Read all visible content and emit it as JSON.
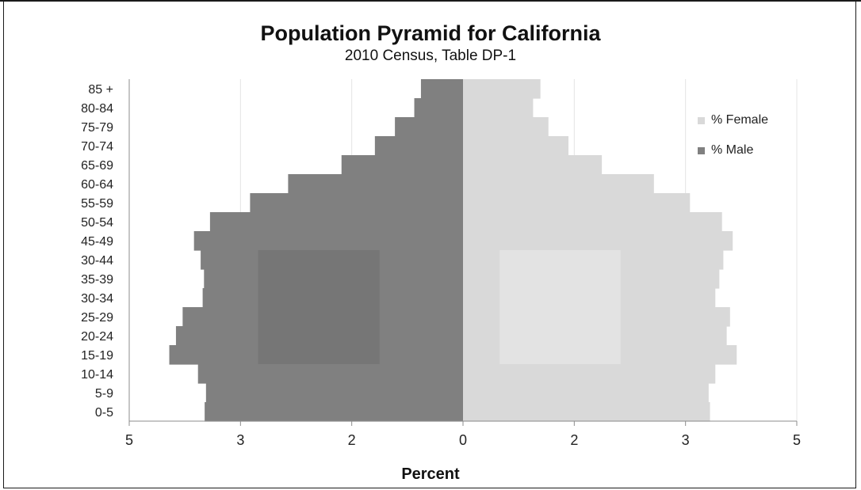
{
  "chart_data": {
    "type": "bar",
    "title": "Population Pyramid for California",
    "subtitle": "2010 Census, Table DP-1",
    "xlabel": "Percent",
    "ylabel": "",
    "categories": [
      "85 +",
      "80-84",
      "75-79",
      "70-74",
      "65-69",
      "60-64",
      "55-59",
      "50-54",
      "45-49",
      "30-44",
      "35-39",
      "30-34",
      "25-29",
      "20-24",
      "15-19",
      "10-14",
      "5-9",
      "0-5"
    ],
    "series": [
      {
        "name": "% Female",
        "color": "#d9d9d9",
        "values": [
          1.16,
          1.05,
          1.28,
          1.58,
          2.08,
          2.86,
          3.4,
          3.88,
          4.04,
          3.9,
          3.84,
          3.78,
          4.0,
          3.95,
          4.1,
          3.78,
          3.68,
          3.7
        ]
      },
      {
        "name": "% Male",
        "color": "#808080",
        "values": [
          0.63,
          0.73,
          1.02,
          1.32,
          1.82,
          2.62,
          3.19,
          3.79,
          4.03,
          3.93,
          3.88,
          3.9,
          4.2,
          4.3,
          4.4,
          3.97,
          3.85,
          3.87
        ]
      }
    ],
    "xlim": [
      -5,
      5
    ],
    "xticks": [
      -5,
      -3.3333,
      -1.6667,
      0,
      1.6667,
      3.3333,
      5
    ],
    "xtick_labels": [
      "5",
      "3",
      "2",
      "0",
      "2",
      "3",
      "5"
    ],
    "grid": "vertical",
    "legend": "right",
    "highlight_boxes": [
      {
        "series": "% Male",
        "x_range": [
          -3.07,
          -1.25
        ],
        "category_range": [
          "30-44",
          "15-19"
        ],
        "color": "#767676"
      },
      {
        "series": "% Female",
        "x_range": [
          0.55,
          2.36
        ],
        "category_range": [
          "30-44",
          "15-19"
        ],
        "color": "#e3e3e3"
      }
    ]
  }
}
